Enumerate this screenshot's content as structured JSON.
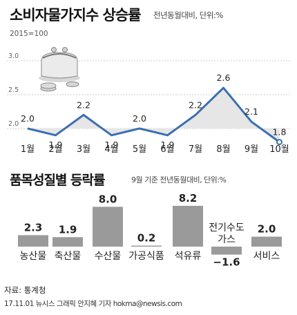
{
  "header": {
    "title": "소비자물가지수 상승률",
    "subtitle": "전년동월대비, 단위:%",
    "base_note": "2015=100"
  },
  "section2": {
    "title": "품목성질별 등락률",
    "subtitle": "9월 기준 전년동월대비, 단위:%"
  },
  "footer": {
    "source": "자료: 통계청",
    "credit": "17.11.01 뉴시스 그래픽 안지혜 기자 hokma@newsis.com"
  },
  "colors": {
    "line": "#3a6fb0",
    "area": "#e6e6e6",
    "bar": "#9a9a9a",
    "text": "#222222"
  },
  "chart_data": [
    {
      "type": "line",
      "title": "소비자물가지수 상승률",
      "subtitle": "전년동월대비, 단위:%",
      "categories": [
        "1월",
        "2월",
        "3월",
        "4월",
        "5월",
        "6월",
        "7월",
        "8월",
        "9월",
        "10월"
      ],
      "values": [
        2.0,
        1.9,
        2.2,
        1.9,
        2.0,
        1.9,
        2.2,
        2.6,
        2.1,
        1.8
      ],
      "value_labels": [
        "2.0",
        "1.9",
        "2.2",
        "1.9",
        "2.0",
        "1.9",
        "2.2",
        "2.6",
        "2.1",
        "1.8"
      ],
      "yticks": [
        "3.0",
        "2.5",
        "2.0"
      ],
      "ylim": [
        1.5,
        3.0
      ],
      "grid": true
    },
    {
      "type": "bar",
      "title": "품목성질별 등락률",
      "subtitle": "9월 기준 전년동월대비, 단위:%",
      "categories": [
        "농산물",
        "축산물",
        "수산물",
        "가공식품",
        "석유류",
        "전기수도가스",
        "서비스"
      ],
      "category_lines": [
        [
          "농산물"
        ],
        [
          "축산물"
        ],
        [
          "수산물"
        ],
        [
          "가공식품"
        ],
        [
          "석유류"
        ],
        [
          "전기수도",
          "가스"
        ],
        [
          "서비스"
        ]
      ],
      "values": [
        2.3,
        1.9,
        8.0,
        0.2,
        8.2,
        -1.6,
        2.0
      ],
      "value_labels": [
        "2.3",
        "1.9",
        "8.0",
        "0.2",
        "8.2",
        "−1.6",
        "2.0"
      ]
    }
  ]
}
